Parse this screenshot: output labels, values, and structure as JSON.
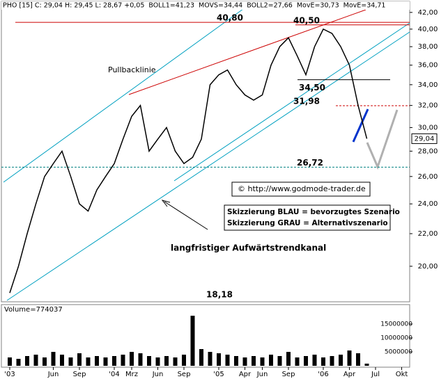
{
  "chart_data": {
    "type": "line",
    "header": [
      {
        "text": "PHO [15] C: 29,04 H: 29,45 L: 28,67 +0,05",
        "color": "#000000"
      },
      {
        "text": "BOLL1=41,23",
        "color": "#a0a0a0"
      },
      {
        "text": "MOVS=34,44",
        "color": "#000000"
      },
      {
        "text": "BOLL2=27,66",
        "color": "#a0a0a0"
      },
      {
        "text": "MovE=30,73",
        "color": "#cc0000"
      },
      {
        "text": "MovE=34,71",
        "color": "#0000cc"
      }
    ],
    "categories": [
      "'03",
      null,
      null,
      null,
      null,
      "Jun",
      null,
      null,
      "Sep",
      null,
      null,
      null,
      "'04",
      null,
      "Mrz",
      null,
      null,
      "Jun",
      null,
      null,
      "Sep",
      null,
      null,
      null,
      "'05",
      null,
      null,
      "Apr",
      null,
      "Jun",
      null,
      null,
      "Sep",
      null,
      null,
      null,
      "'06",
      null,
      null,
      "Apr",
      null,
      null,
      "Jul",
      null,
      null,
      "Okt"
    ],
    "series": [
      {
        "name": "PHO",
        "color": "#000000",
        "values": [
          18.5,
          20,
          22,
          24,
          26,
          27,
          28,
          26,
          24,
          23.5,
          25,
          26,
          27,
          29,
          31,
          32,
          28,
          29,
          30,
          28,
          27,
          27.5,
          29,
          34,
          35,
          35.5,
          34,
          33,
          32.5,
          33,
          36,
          38,
          39,
          37,
          35,
          38,
          40,
          39.5,
          38,
          36,
          32,
          29.04,
          null,
          null,
          null,
          null
        ]
      }
    ],
    "log_y": true,
    "ylim": [
      18.1,
      43.2
    ],
    "yticks": [
      {
        "value": 20,
        "label": "20,00"
      },
      {
        "value": 22,
        "label": "22,00"
      },
      {
        "value": 24,
        "label": "24,00"
      },
      {
        "value": 26,
        "label": "26,00"
      },
      {
        "value": 28,
        "label": "28,00"
      },
      {
        "value": 30,
        "label": "30,00"
      },
      {
        "value": 32,
        "label": "32,00"
      },
      {
        "value": 34,
        "label": "34,00"
      },
      {
        "value": 36,
        "label": "36,00"
      },
      {
        "value": 38,
        "label": "38,00"
      },
      {
        "value": 40,
        "label": "40,00"
      },
      {
        "value": 42,
        "label": "42,00"
      }
    ],
    "last_price": {
      "value": 29.04,
      "label": "29,04"
    },
    "levels": [
      {
        "value": 40.8,
        "label": "40,80",
        "color": "#cc0000"
      },
      {
        "value": 40.5,
        "label": "40,50",
        "color": "#cc0000"
      },
      {
        "value": 34.5,
        "label": "34,50",
        "color": "#000000"
      },
      {
        "value": 31.98,
        "label": "31,98",
        "color": "#cc0000"
      },
      {
        "value": 26.72,
        "label": "26,72",
        "color": "#cc0000"
      },
      {
        "value": 18.18,
        "label": "18,18",
        "color": "#cc0000"
      }
    ],
    "annotations": {
      "pullback": "Pullbacklinie",
      "copyright": "© http://www.godmode-trader.de",
      "blue": "Skizzierung BLAU = bevorzugtes Szenario",
      "grey": "Skizzierung GRAU = Alternativszenario",
      "channel": "langfristiger Aufwärtstrendkanal"
    },
    "volume": {
      "label": "Volume=774037",
      "color": "#000000",
      "values": [
        3000000,
        2500000,
        3500000,
        4000000,
        3000000,
        5000000,
        4000000,
        3000000,
        4500000,
        3000000,
        3500000,
        3000000,
        3500000,
        4000000,
        5000000,
        4500000,
        3500000,
        3000000,
        3500000,
        3000000,
        4000000,
        18000000,
        6000000,
        5000000,
        4500000,
        4000000,
        3500000,
        3000000,
        3500000,
        3000000,
        4000000,
        3500000,
        5000000,
        3000000,
        3500000,
        4000000,
        3000000,
        3500000,
        4000000,
        5500000,
        4500000,
        774037,
        null,
        null,
        null,
        null
      ],
      "ylim": [
        0,
        19000000
      ],
      "yticks": [
        5000000,
        10000000,
        15000000
      ]
    }
  }
}
